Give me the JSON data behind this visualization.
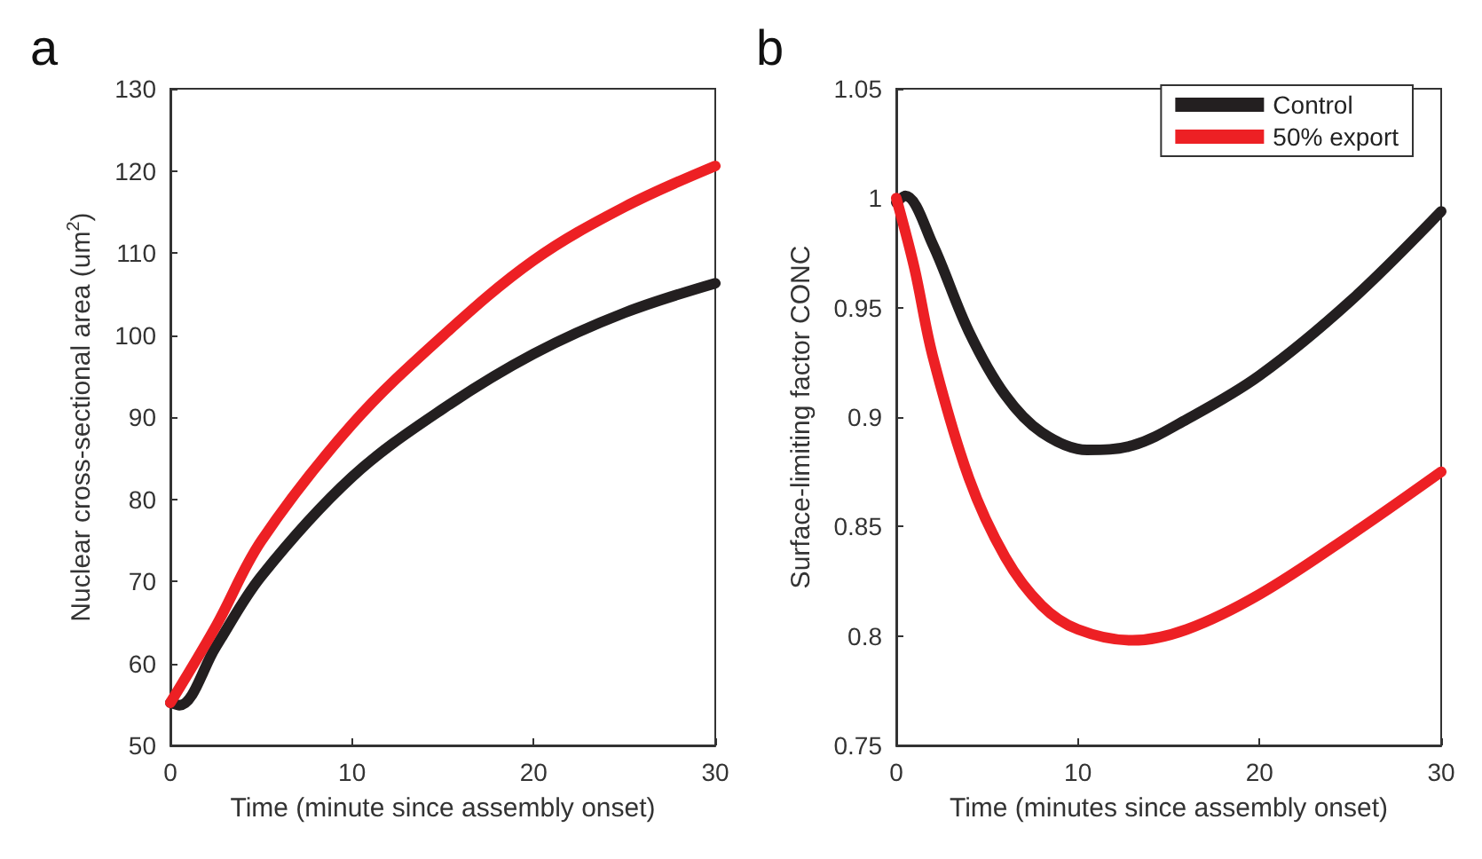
{
  "chart_data": [
    {
      "type": "line",
      "title": "a",
      "xlabel": "Time (minute since assembly onset)",
      "ylabel": "Nuclear cross-sectional area (um$^{2}$)",
      "xlim": [
        0,
        30
      ],
      "xticks": [
        0,
        10,
        20,
        30
      ],
      "ylim": [
        50,
        130
      ],
      "yticks": [
        50,
        60,
        70,
        80,
        90,
        100,
        110,
        120,
        130
      ],
      "grid": false,
      "legend": false,
      "marker": "none",
      "line_style": "solid",
      "series": [
        {
          "color": "#231f20",
          "x": [
            0,
            0.5,
            2.5,
            5,
            10,
            15,
            20,
            25,
            30
          ],
          "values": [
            55.2,
            54.9,
            62,
            70.6,
            82.7,
            91,
            97.7,
            102.7,
            106.3
          ]
        },
        {
          "color": "#ed2024",
          "x": [
            0,
            2.5,
            5,
            10,
            15,
            20,
            25,
            30
          ],
          "values": [
            55.2,
            64.5,
            74.9,
            89.1,
            99.9,
            109.1,
            115.6,
            120.6
          ]
        }
      ]
    },
    {
      "type": "line",
      "title": "b",
      "xlabel": "Time (minutes since assembly onset)",
      "ylabel": "Surface-limiting factor CONC",
      "xlim": [
        0,
        30
      ],
      "xticks": [
        0,
        10,
        20,
        30
      ],
      "ylim": [
        0.75,
        1.05
      ],
      "yticks": [
        0.75,
        0.8,
        0.85,
        0.9,
        0.95,
        1,
        1.05
      ],
      "grid": false,
      "legend": "top right",
      "marker": "none",
      "line_style": "solid",
      "series": [
        {
          "name": "Control",
          "color": "#231f20",
          "x": [
            0,
            0.5,
            2,
            4,
            6,
            8,
            10.5,
            13,
            16,
            20,
            25,
            30
          ],
          "values": [
            0.998,
            1.001,
            0.979,
            0.939,
            0.91,
            0.893,
            0.885,
            0.887,
            0.899,
            0.919,
            0.953,
            0.994
          ]
        },
        {
          "name": "50% export",
          "color": "#ed2024",
          "x": [
            0,
            1,
            2,
            4,
            6,
            8,
            10,
            13,
            16,
            20,
            25,
            30
          ],
          "values": [
            1.0,
            0.968,
            0.928,
            0.872,
            0.836,
            0.814,
            0.803,
            0.798,
            0.803,
            0.819,
            0.846,
            0.875
          ]
        }
      ]
    }
  ]
}
